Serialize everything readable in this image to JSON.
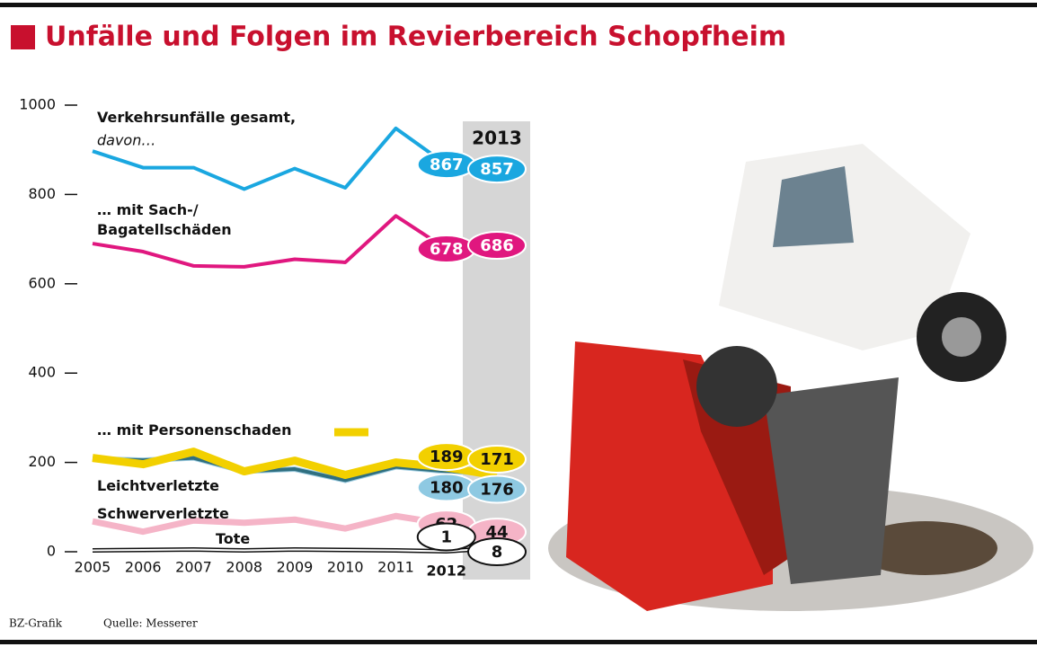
{
  "chart_data": {
    "type": "line",
    "title": "Unfälle und Folgen im Revierbereich Schopfheim",
    "categories": [
      "2005",
      "2006",
      "2007",
      "2008",
      "2009",
      "2010",
      "2011",
      "2012",
      "2013"
    ],
    "ylim": [
      0,
      1000
    ],
    "yticks": [
      0,
      200,
      400,
      600,
      800,
      1000
    ],
    "annotation": "davon…",
    "series": [
      {
        "name": "Verkehrsunfälle gesamt,",
        "color": "#1aa7e0",
        "values": [
          897,
          860,
          860,
          812,
          858,
          815,
          948,
          867,
          857
        ]
      },
      {
        "name": "… mit Sach-/\nBagatellschäden",
        "color": "#e0177f",
        "values": [
          690,
          672,
          640,
          638,
          655,
          648,
          752,
          678,
          686
        ]
      },
      {
        "name": "… mit Personenschaden",
        "color": "#f2d000",
        "values": [
          210,
          196,
          224,
          180,
          204,
          172,
          200,
          189,
          171
        ]
      },
      {
        "name": "Leichtverletzte",
        "color": "#2f6f80",
        "values": [
          208,
          205,
          210,
          180,
          185,
          160,
          190,
          180,
          176
        ]
      },
      {
        "name": "Schwerverletzte",
        "color": "#f5b4c7",
        "values": [
          68,
          45,
          70,
          65,
          72,
          52,
          80,
          62,
          44
        ]
      },
      {
        "name": "Tote",
        "color": "#ffffff",
        "values": [
          3,
          4,
          5,
          3,
          5,
          4,
          3,
          1,
          8
        ]
      }
    ],
    "footer": {
      "credit": "BZ-Grafik",
      "source": "Quelle: Messerer"
    }
  }
}
